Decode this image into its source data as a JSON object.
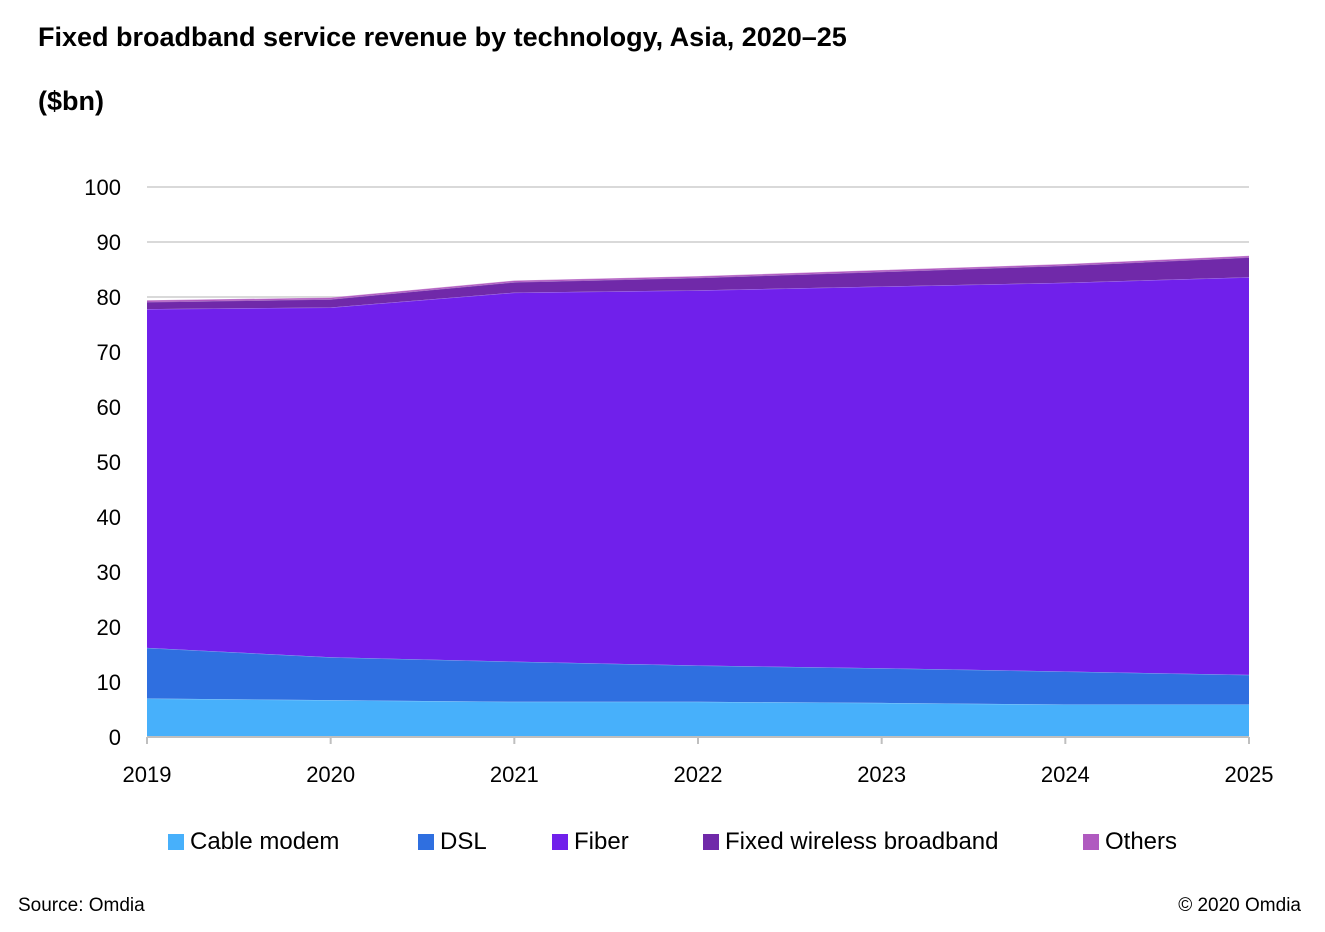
{
  "header": {
    "title": "Fixed broadband  service revenue by technology,  Asia, 2020–25",
    "subtitle": "($bn)"
  },
  "footer": {
    "source": "Source: Omdia",
    "copyright": "© 2020 Omdia"
  },
  "chart_data": {
    "type": "area",
    "stacked": true,
    "title": "Fixed broadband  service revenue by technology,  Asia, 2020–25",
    "subtitle": "($bn)",
    "xlabel": "",
    "ylabel": "",
    "x": [
      "2019",
      "2020",
      "2021",
      "2022",
      "2023",
      "2024",
      "2025"
    ],
    "ylim": [
      0,
      100
    ],
    "yticks": [
      0,
      10,
      20,
      30,
      40,
      50,
      60,
      70,
      80,
      90,
      100
    ],
    "grid": true,
    "legend_position": "bottom",
    "series": [
      {
        "name": "Cable modem",
        "color": "#47b0fb",
        "values": [
          7.0,
          6.7,
          6.4,
          6.4,
          6.2,
          5.9,
          5.9
        ]
      },
      {
        "name": "DSL",
        "color": "#2f6fe0",
        "values": [
          9.2,
          7.8,
          7.3,
          6.6,
          6.3,
          6.0,
          5.4
        ]
      },
      {
        "name": "Fiber",
        "color": "#7020eb",
        "values": [
          61.6,
          63.6,
          67.1,
          68.2,
          69.4,
          70.7,
          72.3
        ]
      },
      {
        "name": "Fixed wireless broadband",
        "color": "#7029a9",
        "values": [
          1.3,
          1.5,
          1.9,
          2.3,
          2.7,
          3.1,
          3.6
        ]
      },
      {
        "name": "Others",
        "color": "#b05ac0",
        "values": [
          0.3,
          0.3,
          0.3,
          0.3,
          0.3,
          0.3,
          0.3
        ]
      }
    ]
  }
}
